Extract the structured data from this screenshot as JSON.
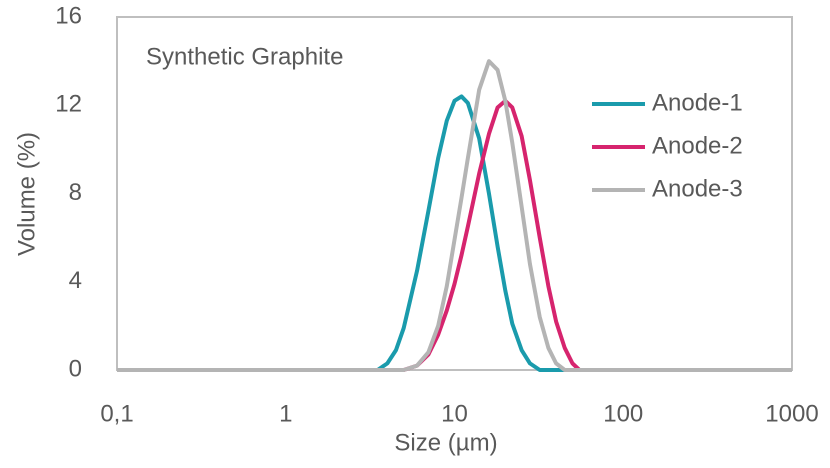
{
  "chart_data": {
    "type": "line",
    "annotation": "Synthetic Graphite",
    "x_label": "Size (µm)",
    "y_label": "Volume (%)",
    "x_scale": "log",
    "grid": false,
    "legend": "upper right",
    "x": [
      0.1,
      3.5,
      4,
      4.5,
      5,
      6,
      7,
      8,
      9,
      10,
      11,
      12,
      14,
      16,
      18,
      20,
      22,
      25,
      28,
      32,
      36,
      40,
      45,
      50,
      55,
      1000
    ],
    "series": [
      {
        "name": "Anode-1",
        "color": "#1a9bac",
        "values": [
          0,
          0,
          0.3,
          0.9,
          1.9,
          4.5,
          7.2,
          9.6,
          11.3,
          12.2,
          12.4,
          12.1,
          10.5,
          8.0,
          5.6,
          3.6,
          2.1,
          0.9,
          0.3,
          0,
          0,
          0,
          0,
          0,
          0,
          0
        ]
      },
      {
        "name": "Anode-2",
        "color": "#d6246e",
        "values": [
          0,
          0,
          0,
          0,
          0,
          0.2,
          0.7,
          1.6,
          2.7,
          3.9,
          5.2,
          6.5,
          8.9,
          10.7,
          11.9,
          12.2,
          11.9,
          10.6,
          8.6,
          6.0,
          3.8,
          2.2,
          1.0,
          0.3,
          0,
          0
        ]
      },
      {
        "name": "Anode-3",
        "color": "#b4b4b4",
        "values": [
          0,
          0,
          0,
          0,
          0,
          0.2,
          0.8,
          2.0,
          3.8,
          5.9,
          7.8,
          9.6,
          12.7,
          14.0,
          13.6,
          12.2,
          10.3,
          7.4,
          4.8,
          2.4,
          1.0,
          0.3,
          0,
          0,
          0,
          0
        ]
      }
    ],
    "xlim": [
      0.1,
      1000
    ],
    "xticks": [
      {
        "value": 0.1,
        "label": "0,1"
      },
      1,
      10,
      100,
      1000
    ],
    "ylim": [
      0,
      16
    ],
    "yticks": [
      0,
      4,
      8,
      12,
      16
    ]
  }
}
